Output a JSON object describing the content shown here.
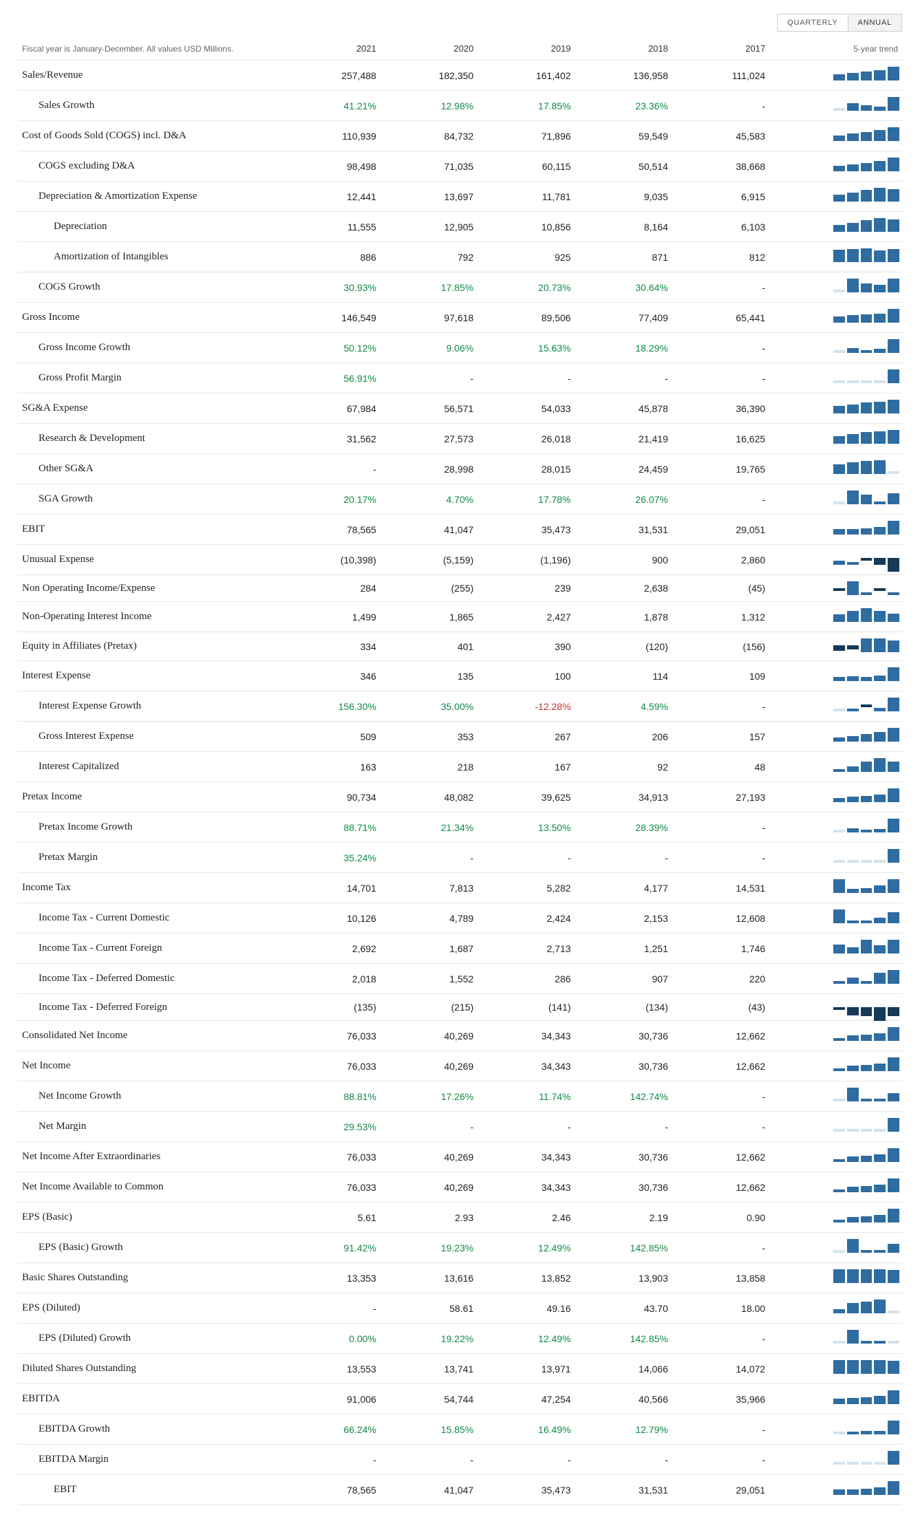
{
  "meta": {
    "note": "Fiscal year is January-December. All values USD Millions.",
    "trend_header": "5-year trend",
    "spark_color": "#2f6ca1",
    "spark_neg_color": "#163a57",
    "pos_text_color": "#0f8a46",
    "neg_text_color": "#cc2b2b"
  },
  "tabs": {
    "quarterly": "QUARTERLY",
    "annual": "ANNUAL",
    "active": "annual"
  },
  "years": [
    "2021",
    "2020",
    "2019",
    "2018",
    "2017"
  ],
  "rows": [
    {
      "label": "Sales/Revenue",
      "indent": 0,
      "v": [
        "257,488",
        "182,350",
        "161,402",
        "136,958",
        "111,024"
      ],
      "spark": [
        45,
        55,
        65,
        73,
        100
      ]
    },
    {
      "label": "Sales Growth",
      "indent": 1,
      "v": [
        "41.21%",
        "12.98%",
        "17.85%",
        "23.36%",
        "-"
      ],
      "c": [
        "pos",
        "pos",
        "pos",
        "pos",
        ""
      ],
      "spark": [
        0,
        55,
        40,
        30,
        100
      ]
    },
    {
      "label": "Cost of Goods Sold (COGS) incl. D&A",
      "indent": 0,
      "v": [
        "110,939",
        "84,732",
        "71,896",
        "59,549",
        "45,583"
      ],
      "spark": [
        42,
        55,
        66,
        78,
        100
      ]
    },
    {
      "label": "COGS excluding D&A",
      "indent": 1,
      "v": [
        "98,498",
        "71,035",
        "60,115",
        "50,514",
        "38,668"
      ],
      "spark": [
        40,
        52,
        62,
        73,
        100
      ]
    },
    {
      "label": "Depreciation & Amortization Expense",
      "indent": 1,
      "v": [
        "12,441",
        "13,697",
        "11,781",
        "9,035",
        "6,915"
      ],
      "spark": [
        50,
        65,
        85,
        100,
        90
      ]
    },
    {
      "label": "Depreciation",
      "indent": 2,
      "v": [
        "11,555",
        "12,905",
        "10,856",
        "8,164",
        "6,103"
      ],
      "spark": [
        48,
        64,
        85,
        100,
        90
      ]
    },
    {
      "label": "Amortization of Intangibles",
      "indent": 2,
      "v": [
        "886",
        "792",
        "925",
        "871",
        "812"
      ],
      "spark": [
        88,
        95,
        100,
        86,
        96
      ]
    },
    {
      "label": "COGS Growth",
      "indent": 1,
      "v": [
        "30.93%",
        "17.85%",
        "20.73%",
        "30.64%",
        "-"
      ],
      "c": [
        "pos",
        "pos",
        "pos",
        "pos",
        ""
      ],
      "spark": [
        0,
        99,
        65,
        57,
        100
      ]
    },
    {
      "label": "Gross Income",
      "indent": 0,
      "v": [
        "146,549",
        "97,618",
        "89,506",
        "77,409",
        "65,441"
      ],
      "spark": [
        45,
        53,
        62,
        67,
        100
      ]
    },
    {
      "label": "Gross Income Growth",
      "indent": 1,
      "v": [
        "50.12%",
        "9.06%",
        "15.63%",
        "18.29%",
        "-"
      ],
      "c": [
        "pos",
        "pos",
        "pos",
        "pos",
        ""
      ],
      "spark": [
        0,
        36,
        18,
        30,
        100
      ]
    },
    {
      "label": "Gross Profit Margin",
      "indent": 1,
      "v": [
        "56.91%",
        "-",
        "-",
        "-",
        "-"
      ],
      "c": [
        "pos",
        "",
        "",
        "",
        ""
      ],
      "spark": [
        0,
        0,
        0,
        0,
        100
      ]
    },
    {
      "label": "SG&A Expense",
      "indent": 0,
      "v": [
        "67,984",
        "56,571",
        "54,033",
        "45,878",
        "36,390"
      ],
      "spark": [
        54,
        67,
        80,
        84,
        100
      ]
    },
    {
      "label": "Research & Development",
      "indent": 1,
      "v": [
        "31,562",
        "27,573",
        "26,018",
        "21,419",
        "16,625"
      ],
      "spark": [
        53,
        68,
        83,
        88,
        100
      ]
    },
    {
      "label": "Other SG&A",
      "indent": 1,
      "v": [
        "-",
        "28,998",
        "28,015",
        "24,459",
        "19,765"
      ],
      "spark": [
        68,
        85,
        97,
        100,
        0
      ]
    },
    {
      "label": "SGA Growth",
      "indent": 1,
      "v": [
        "20.17%",
        "4.70%",
        "17.78%",
        "26.07%",
        "-"
      ],
      "c": [
        "pos",
        "pos",
        "pos",
        "pos",
        ""
      ],
      "spark": [
        0,
        100,
        68,
        18,
        78
      ]
    },
    {
      "label": "EBIT",
      "indent": 0,
      "v": [
        "78,565",
        "41,047",
        "35,473",
        "31,531",
        "29,051"
      ],
      "spark": [
        38,
        41,
        46,
        53,
        100
      ]
    },
    {
      "label": "Unusual Expense",
      "indent": 0,
      "v": [
        "(10,398)",
        "(5,159)",
        "(1,196)",
        "900",
        "2,860"
      ],
      "spark": [
        28,
        9,
        -12,
        -50,
        -100
      ]
    },
    {
      "label": "Non Operating Income/Expense",
      "indent": 0,
      "v": [
        "284",
        "(255)",
        "239",
        "2,638",
        "(45)"
      ],
      "spark": [
        -4,
        100,
        10,
        -10,
        11
      ]
    },
    {
      "label": "Non-Operating Interest Income",
      "indent": 0,
      "v": [
        "1,499",
        "1,865",
        "2,427",
        "1,878",
        "1,312"
      ],
      "spark": [
        55,
        78,
        100,
        78,
        62
      ]
    },
    {
      "label": "Equity in Affiliates (Pretax)",
      "indent": 0,
      "v": [
        "334",
        "401",
        "390",
        "(120)",
        "(156)"
      ],
      "spark": [
        -38,
        -30,
        98,
        100,
        85
      ]
    },
    {
      "label": "Interest Expense",
      "indent": 0,
      "v": [
        "346",
        "135",
        "100",
        "114",
        "109"
      ],
      "spark": [
        32,
        33,
        30,
        40,
        100
      ]
    },
    {
      "label": "Interest Expense Growth",
      "indent": 1,
      "v": [
        "156.30%",
        "35.00%",
        "-12.28%",
        "4.59%",
        "-"
      ],
      "c": [
        "pos",
        "pos",
        "neg",
        "pos",
        ""
      ],
      "spark": [
        0,
        5,
        -10,
        23,
        100
      ]
    },
    {
      "label": "Gross Interest Expense",
      "indent": 1,
      "v": [
        "509",
        "353",
        "267",
        "206",
        "157"
      ],
      "spark": [
        32,
        42,
        54,
        70,
        100
      ]
    },
    {
      "label": "Interest Capitalized",
      "indent": 1,
      "v": [
        "163",
        "218",
        "167",
        "92",
        "48"
      ],
      "spark": [
        22,
        42,
        77,
        100,
        75
      ]
    },
    {
      "label": "Pretax Income",
      "indent": 0,
      "v": [
        "90,734",
        "48,082",
        "39,625",
        "34,913",
        "27,193"
      ],
      "spark": [
        30,
        38,
        44,
        53,
        100
      ]
    },
    {
      "label": "Pretax Income Growth",
      "indent": 1,
      "v": [
        "88.71%",
        "21.34%",
        "13.50%",
        "28.39%",
        "-"
      ],
      "c": [
        "pos",
        "pos",
        "pos",
        "pos",
        ""
      ],
      "spark": [
        0,
        32,
        16,
        24,
        100
      ]
    },
    {
      "label": "Pretax Margin",
      "indent": 1,
      "v": [
        "35.24%",
        "-",
        "-",
        "-",
        "-"
      ],
      "c": [
        "pos",
        "",
        "",
        "",
        ""
      ],
      "spark": [
        0,
        0,
        0,
        0,
        100
      ]
    },
    {
      "label": "Income Tax",
      "indent": 0,
      "v": [
        "14,701",
        "7,813",
        "5,282",
        "4,177",
        "14,531"
      ],
      "spark": [
        98,
        28,
        35,
        53,
        100
      ]
    },
    {
      "label": "Income Tax - Current Domestic",
      "indent": 1,
      "v": [
        "10,126",
        "4,789",
        "2,424",
        "2,153",
        "12,608"
      ],
      "spark": [
        100,
        18,
        20,
        38,
        80
      ]
    },
    {
      "label": "Income Tax - Current Foreign",
      "indent": 1,
      "v": [
        "2,692",
        "1,687",
        "2,713",
        "1,251",
        "1,746"
      ],
      "spark": [
        65,
        46,
        100,
        62,
        99
      ]
    },
    {
      "label": "Income Tax - Deferred Domestic",
      "indent": 1,
      "v": [
        "2,018",
        "1,552",
        "286",
        "907",
        "220"
      ],
      "spark": [
        11,
        45,
        15,
        78,
        100
      ]
    },
    {
      "label": "Income Tax - Deferred Foreign",
      "indent": 1,
      "v": [
        "(135)",
        "(215)",
        "(141)",
        "(134)",
        "(43)"
      ],
      "spark": [
        -20,
        -62,
        -66,
        -100,
        -63
      ]
    },
    {
      "label": "Consolidated Net Income",
      "indent": 0,
      "v": [
        "76,033",
        "40,269",
        "34,343",
        "30,736",
        "12,662"
      ],
      "spark": [
        17,
        41,
        46,
        54,
        100
      ]
    },
    {
      "label": "Net Income",
      "indent": 0,
      "v": [
        "76,033",
        "40,269",
        "34,343",
        "30,736",
        "12,662"
      ],
      "spark": [
        17,
        41,
        46,
        54,
        100
      ]
    },
    {
      "label": "Net Income Growth",
      "indent": 1,
      "v": [
        "88.81%",
        "17.26%",
        "11.74%",
        "142.74%",
        "-"
      ],
      "c": [
        "pos",
        "pos",
        "pos",
        "pos",
        ""
      ],
      "spark": [
        0,
        100,
        8,
        12,
        62
      ]
    },
    {
      "label": "Net Margin",
      "indent": 1,
      "v": [
        "29.53%",
        "-",
        "-",
        "-",
        "-"
      ],
      "c": [
        "pos",
        "",
        "",
        "",
        ""
      ],
      "spark": [
        0,
        0,
        0,
        0,
        100
      ]
    },
    {
      "label": "Net Income After Extraordinaries",
      "indent": 0,
      "v": [
        "76,033",
        "40,269",
        "34,343",
        "30,736",
        "12,662"
      ],
      "spark": [
        17,
        41,
        46,
        54,
        100
      ]
    },
    {
      "label": "Net Income Available to Common",
      "indent": 0,
      "v": [
        "76,033",
        "40,269",
        "34,343",
        "30,736",
        "12,662"
      ],
      "spark": [
        17,
        41,
        46,
        54,
        100
      ]
    },
    {
      "label": "EPS (Basic)",
      "indent": 0,
      "v": [
        "5.61",
        "2.93",
        "2.46",
        "2.19",
        "0.90"
      ],
      "spark": [
        17,
        40,
        45,
        53,
        100
      ]
    },
    {
      "label": "EPS (Basic) Growth",
      "indent": 1,
      "v": [
        "91.42%",
        "19.23%",
        "12.49%",
        "142.85%",
        "-"
      ],
      "c": [
        "pos",
        "pos",
        "pos",
        "pos",
        ""
      ],
      "spark": [
        0,
        100,
        9,
        14,
        64
      ]
    },
    {
      "label": "Basic Shares Outstanding",
      "indent": 0,
      "v": [
        "13,353",
        "13,616",
        "13,852",
        "13,903",
        "13,858"
      ],
      "spark": [
        100,
        100,
        100,
        98,
        97
      ]
    },
    {
      "label": "EPS (Diluted)",
      "indent": 0,
      "v": [
        "-",
        "58.61",
        "49.16",
        "43.70",
        "18.00"
      ],
      "spark": [
        31,
        75,
        84,
        100,
        0
      ]
    },
    {
      "label": "EPS (Diluted) Growth",
      "indent": 1,
      "v": [
        "0.00%",
        "19.22%",
        "12.49%",
        "142.85%",
        "-"
      ],
      "c": [
        "pos",
        "pos",
        "pos",
        "pos",
        ""
      ],
      "spark": [
        0,
        100,
        9,
        14,
        0
      ]
    },
    {
      "label": "Diluted Shares Outstanding",
      "indent": 0,
      "v": [
        "13,553",
        "13,741",
        "13,971",
        "14,066",
        "14,072"
      ],
      "spark": [
        100,
        100,
        100,
        98,
        97
      ]
    },
    {
      "label": "EBITDA",
      "indent": 0,
      "v": [
        "91,006",
        "54,744",
        "47,254",
        "40,566",
        "35,966"
      ],
      "spark": [
        40,
        45,
        52,
        60,
        100
      ]
    },
    {
      "label": "EBITDA Growth",
      "indent": 1,
      "v": [
        "66.24%",
        "15.85%",
        "16.49%",
        "12.79%",
        "-"
      ],
      "c": [
        "pos",
        "pos",
        "pos",
        "pos",
        ""
      ],
      "spark": [
        0,
        20,
        25,
        24,
        100
      ]
    },
    {
      "label": "EBITDA Margin",
      "indent": 1,
      "v": [
        "-",
        "-",
        "-",
        "-",
        "-"
      ],
      "spark": [
        0,
        0,
        0,
        0,
        100
      ]
    },
    {
      "label": "EBIT",
      "indent": 2,
      "v": [
        "78,565",
        "41,047",
        "35,473",
        "31,531",
        "29,051"
      ],
      "spark": [
        38,
        41,
        46,
        53,
        100
      ]
    }
  ]
}
